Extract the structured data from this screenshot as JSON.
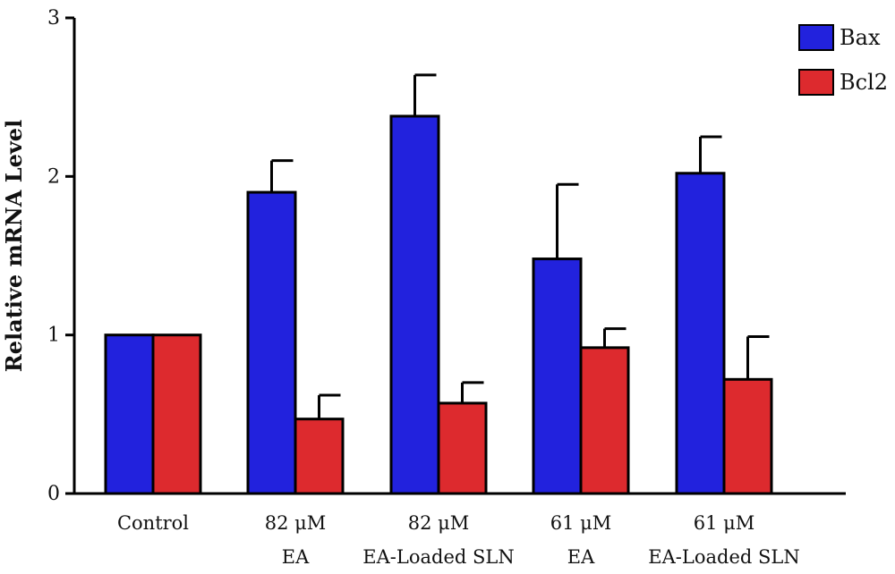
{
  "chart_data": {
    "type": "bar",
    "ylabel": "Relative mRNA Level",
    "xlabel": "",
    "ylim": [
      0,
      3
    ],
    "yticks": [
      "0",
      "1",
      "2",
      "3"
    ],
    "categories": [
      [
        "Control"
      ],
      [
        "82 μM",
        "EA"
      ],
      [
        "82 μM",
        "EA-Loaded SLN"
      ],
      [
        "61 μM",
        "EA"
      ],
      [
        "61 μM",
        "EA-Loaded SLN"
      ]
    ],
    "series": [
      {
        "name": "Bax",
        "color": "#2222dd",
        "values": [
          1.0,
          1.9,
          2.38,
          1.48,
          2.02
        ],
        "errors": [
          0,
          0.2,
          0.26,
          0.47,
          0.23
        ]
      },
      {
        "name": "Bcl2",
        "color": "#dd2a2e",
        "values": [
          1.0,
          0.47,
          0.57,
          0.92,
          0.72
        ],
        "errors": [
          0,
          0.15,
          0.13,
          0.12,
          0.27
        ]
      }
    ],
    "legend": "top-right",
    "grid": false
  }
}
